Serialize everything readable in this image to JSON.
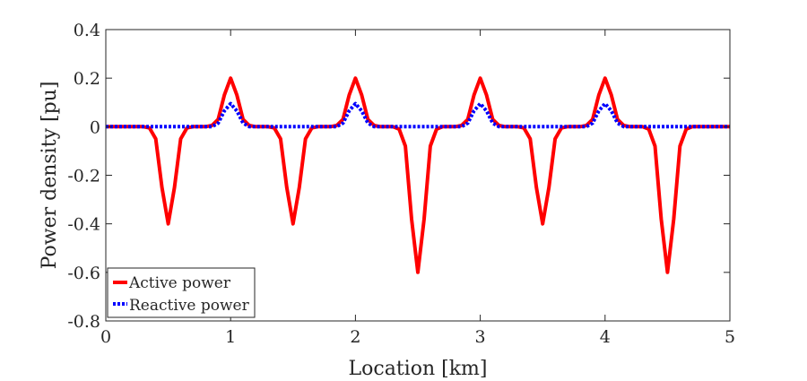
{
  "chart_data": {
    "type": "line",
    "title": "",
    "xlabel": "Location [km]",
    "ylabel": "Power density [pu]",
    "xlim": [
      0,
      5
    ],
    "ylim": [
      -0.8,
      0.4
    ],
    "xticks": [
      0,
      1,
      2,
      3,
      4,
      5
    ],
    "xtick_labels": [
      "0",
      "1",
      "2",
      "3",
      "4",
      "5"
    ],
    "yticks": [
      -0.8,
      -0.6,
      -0.4,
      -0.2,
      0,
      0.2,
      0.4
    ],
    "ytick_labels": [
      "-0.8",
      "-0.6",
      "-0.4",
      "-0.2",
      "0",
      "0.2",
      "0.4"
    ],
    "grid": false,
    "legend_position": "bottom-left",
    "series": [
      {
        "name": "Active power",
        "color": "#ff0000",
        "style": "solid",
        "x": [
          0,
          0.3,
          0.35,
          0.4,
          0.45,
          0.5,
          0.55,
          0.6,
          0.65,
          0.7,
          0.8,
          0.85,
          0.9,
          0.95,
          1.0,
          1.05,
          1.1,
          1.15,
          1.2,
          1.3,
          1.35,
          1.4,
          1.45,
          1.5,
          1.55,
          1.6,
          1.65,
          1.7,
          1.8,
          1.85,
          1.9,
          1.95,
          2.0,
          2.05,
          2.1,
          2.15,
          2.2,
          2.3,
          2.35,
          2.4,
          2.45,
          2.5,
          2.55,
          2.6,
          2.65,
          2.7,
          2.8,
          2.85,
          2.9,
          2.95,
          3.0,
          3.05,
          3.1,
          3.15,
          3.2,
          3.3,
          3.35,
          3.4,
          3.45,
          3.5,
          3.55,
          3.6,
          3.65,
          3.7,
          3.8,
          3.85,
          3.9,
          3.95,
          4.0,
          4.05,
          4.1,
          4.15,
          4.2,
          4.3,
          4.35,
          4.4,
          4.45,
          4.5,
          4.55,
          4.6,
          4.65,
          4.7,
          5.0
        ],
        "y": [
          0,
          0,
          -0.005,
          -0.05,
          -0.25,
          -0.4,
          -0.25,
          -0.05,
          -0.005,
          0,
          0,
          0.005,
          0.03,
          0.13,
          0.2,
          0.13,
          0.03,
          0.005,
          0,
          0,
          -0.005,
          -0.05,
          -0.25,
          -0.4,
          -0.25,
          -0.05,
          -0.005,
          0,
          0,
          0.005,
          0.03,
          0.13,
          0.2,
          0.13,
          0.03,
          0.005,
          0,
          0,
          -0.01,
          -0.08,
          -0.38,
          -0.6,
          -0.38,
          -0.08,
          -0.01,
          0,
          0,
          0.005,
          0.03,
          0.13,
          0.2,
          0.13,
          0.03,
          0.005,
          0,
          0,
          -0.005,
          -0.05,
          -0.25,
          -0.4,
          -0.25,
          -0.05,
          -0.005,
          0,
          0,
          0.005,
          0.03,
          0.13,
          0.2,
          0.13,
          0.03,
          0.005,
          0,
          0,
          -0.01,
          -0.08,
          -0.38,
          -0.6,
          -0.38,
          -0.08,
          -0.01,
          0,
          0
        ]
      },
      {
        "name": "Reactive power",
        "color": "#0000ff",
        "style": "dotted",
        "x": [
          0,
          0.85,
          0.9,
          0.95,
          1.0,
          1.05,
          1.1,
          1.15,
          1.85,
          1.9,
          1.95,
          2.0,
          2.05,
          2.1,
          2.15,
          2.85,
          2.9,
          2.95,
          3.0,
          3.05,
          3.1,
          3.15,
          3.85,
          3.9,
          3.95,
          4.0,
          4.05,
          4.1,
          4.15,
          5.0
        ],
        "y": [
          0,
          0,
          0.015,
          0.065,
          0.095,
          0.065,
          0.015,
          0,
          0,
          0.015,
          0.065,
          0.095,
          0.065,
          0.015,
          0,
          0,
          0.015,
          0.065,
          0.095,
          0.065,
          0.015,
          0,
          0,
          0.015,
          0.065,
          0.095,
          0.065,
          0.015,
          0,
          0
        ]
      }
    ]
  }
}
